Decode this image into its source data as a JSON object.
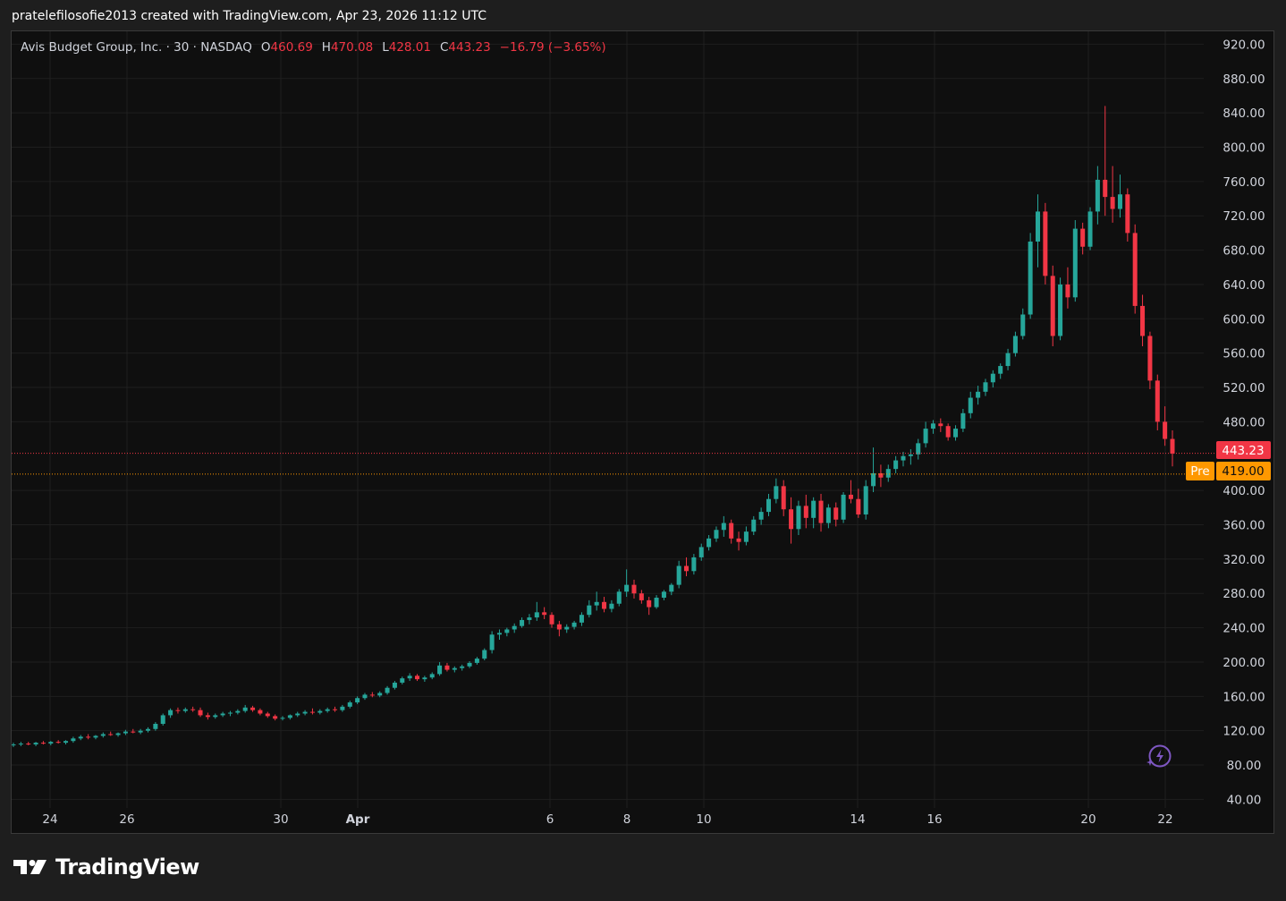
{
  "attribution": "pratelefilosofie2013 created with TradingView.com, Apr 23, 2026 11:12 UTC",
  "legend": {
    "symbol": "Avis Budget Group, Inc. · 30 · NASDAQ",
    "open_label": "O",
    "open": "460.69",
    "high_label": "H",
    "high": "470.08",
    "low_label": "L",
    "low": "428.01",
    "close_label": "C",
    "close": "443.23",
    "change": "−16.79 (−3.65%)"
  },
  "price_labels": {
    "last": "443.23",
    "premarket_tag": "Pre",
    "premarket": "419.00"
  },
  "logo_text": "TradingView",
  "colors": {
    "up": "#26a69a",
    "down": "#f23645",
    "premarket": "#ff9800",
    "background": "#0f0f0f",
    "grid": "#1f1f1f",
    "text": "#d1d4dc"
  },
  "icons": {
    "bolt": "lightning-bolt-icon",
    "logo": "tradingview-logo-icon"
  },
  "chart_data": {
    "type": "candlestick",
    "interval": "30",
    "y_axis": {
      "position": "right",
      "range": [
        30,
        935
      ],
      "ticks": [
        "920.00",
        "880.00",
        "840.00",
        "800.00",
        "760.00",
        "720.00",
        "680.00",
        "640.00",
        "600.00",
        "560.00",
        "520.00",
        "480.00",
        "400.00",
        "360.00",
        "320.00",
        "280.00",
        "240.00",
        "200.00",
        "160.00",
        "120.00",
        "80.00",
        "40.00"
      ]
    },
    "x_axis": {
      "range": [
        "Mar 23",
        "Apr 23"
      ],
      "ticks": [
        {
          "label": "24",
          "date": "Mar 24",
          "bold": false
        },
        {
          "label": "26",
          "date": "Mar 26",
          "bold": false
        },
        {
          "label": "30",
          "date": "Mar 30",
          "bold": false
        },
        {
          "label": "Apr",
          "date": "Apr 1",
          "bold": true
        },
        {
          "label": "6",
          "date": "Apr 6",
          "bold": false
        },
        {
          "label": "8",
          "date": "Apr 8",
          "bold": false
        },
        {
          "label": "10",
          "date": "Apr 10",
          "bold": false
        },
        {
          "label": "14",
          "date": "Apr 14",
          "bold": false
        },
        {
          "label": "16",
          "date": "Apr 16",
          "bold": false
        },
        {
          "label": "20",
          "date": "Apr 20",
          "bold": false
        },
        {
          "label": "22",
          "date": "Apr 22",
          "bold": false
        }
      ]
    },
    "grid": true,
    "price_lines": [
      {
        "name": "last",
        "value": 443.23,
        "color": "#f23645"
      },
      {
        "name": "premarket",
        "value": 419.0,
        "color": "#ff9800"
      }
    ],
    "candles": [
      {
        "o": 103,
        "h": 106,
        "l": 101,
        "c": 104
      },
      {
        "o": 104,
        "h": 107,
        "l": 102,
        "c": 105
      },
      {
        "o": 105,
        "h": 107,
        "l": 103,
        "c": 104
      },
      {
        "o": 104,
        "h": 107,
        "l": 102,
        "c": 106
      },
      {
        "o": 106,
        "h": 108,
        "l": 104,
        "c": 105
      },
      {
        "o": 105,
        "h": 108,
        "l": 103,
        "c": 107
      },
      {
        "o": 107,
        "h": 109,
        "l": 105,
        "c": 106
      },
      {
        "o": 106,
        "h": 109,
        "l": 104,
        "c": 108
      },
      {
        "o": 108,
        "h": 113,
        "l": 106,
        "c": 111
      },
      {
        "o": 111,
        "h": 115,
        "l": 109,
        "c": 113
      },
      {
        "o": 113,
        "h": 116,
        "l": 110,
        "c": 112
      },
      {
        "o": 112,
        "h": 115,
        "l": 110,
        "c": 114
      },
      {
        "o": 114,
        "h": 118,
        "l": 112,
        "c": 116
      },
      {
        "o": 116,
        "h": 119,
        "l": 114,
        "c": 115
      },
      {
        "o": 115,
        "h": 118,
        "l": 113,
        "c": 117
      },
      {
        "o": 117,
        "h": 121,
        "l": 115,
        "c": 119
      },
      {
        "o": 119,
        "h": 122,
        "l": 117,
        "c": 118
      },
      {
        "o": 118,
        "h": 122,
        "l": 116,
        "c": 120
      },
      {
        "o": 120,
        "h": 124,
        "l": 118,
        "c": 122
      },
      {
        "o": 122,
        "h": 130,
        "l": 120,
        "c": 128
      },
      {
        "o": 128,
        "h": 140,
        "l": 126,
        "c": 138
      },
      {
        "o": 138,
        "h": 146,
        "l": 135,
        "c": 144
      },
      {
        "o": 144,
        "h": 147,
        "l": 140,
        "c": 143
      },
      {
        "o": 143,
        "h": 147,
        "l": 141,
        "c": 145
      },
      {
        "o": 145,
        "h": 148,
        "l": 142,
        "c": 144
      },
      {
        "o": 144,
        "h": 147,
        "l": 136,
        "c": 138
      },
      {
        "o": 138,
        "h": 141,
        "l": 133,
        "c": 136
      },
      {
        "o": 136,
        "h": 140,
        "l": 134,
        "c": 138
      },
      {
        "o": 138,
        "h": 142,
        "l": 136,
        "c": 140
      },
      {
        "o": 140,
        "h": 143,
        "l": 137,
        "c": 141
      },
      {
        "o": 141,
        "h": 145,
        "l": 139,
        "c": 143
      },
      {
        "o": 143,
        "h": 150,
        "l": 141,
        "c": 147
      },
      {
        "o": 147,
        "h": 149,
        "l": 142,
        "c": 144
      },
      {
        "o": 144,
        "h": 146,
        "l": 138,
        "c": 140
      },
      {
        "o": 140,
        "h": 142,
        "l": 135,
        "c": 137
      },
      {
        "o": 137,
        "h": 139,
        "l": 132,
        "c": 134
      },
      {
        "o": 134,
        "h": 137,
        "l": 132,
        "c": 135
      },
      {
        "o": 135,
        "h": 139,
        "l": 133,
        "c": 138
      },
      {
        "o": 138,
        "h": 142,
        "l": 136,
        "c": 140
      },
      {
        "o": 140,
        "h": 144,
        "l": 138,
        "c": 142
      },
      {
        "o": 142,
        "h": 146,
        "l": 139,
        "c": 141
      },
      {
        "o": 141,
        "h": 145,
        "l": 139,
        "c": 143
      },
      {
        "o": 143,
        "h": 147,
        "l": 141,
        "c": 145
      },
      {
        "o": 145,
        "h": 148,
        "l": 142,
        "c": 144
      },
      {
        "o": 144,
        "h": 150,
        "l": 142,
        "c": 148
      },
      {
        "o": 148,
        "h": 155,
        "l": 146,
        "c": 153
      },
      {
        "o": 153,
        "h": 160,
        "l": 151,
        "c": 158
      },
      {
        "o": 158,
        "h": 164,
        "l": 156,
        "c": 162
      },
      {
        "o": 162,
        "h": 165,
        "l": 159,
        "c": 161
      },
      {
        "o": 161,
        "h": 166,
        "l": 159,
        "c": 164
      },
      {
        "o": 164,
        "h": 172,
        "l": 162,
        "c": 170
      },
      {
        "o": 170,
        "h": 178,
        "l": 168,
        "c": 176
      },
      {
        "o": 176,
        "h": 183,
        "l": 174,
        "c": 181
      },
      {
        "o": 181,
        "h": 187,
        "l": 178,
        "c": 184
      },
      {
        "o": 184,
        "h": 186,
        "l": 178,
        "c": 180
      },
      {
        "o": 180,
        "h": 184,
        "l": 177,
        "c": 182
      },
      {
        "o": 182,
        "h": 188,
        "l": 180,
        "c": 186
      },
      {
        "o": 186,
        "h": 200,
        "l": 184,
        "c": 196
      },
      {
        "o": 196,
        "h": 199,
        "l": 189,
        "c": 191
      },
      {
        "o": 191,
        "h": 195,
        "l": 188,
        "c": 193
      },
      {
        "o": 193,
        "h": 197,
        "l": 190,
        "c": 195
      },
      {
        "o": 195,
        "h": 201,
        "l": 193,
        "c": 199
      },
      {
        "o": 199,
        "h": 206,
        "l": 197,
        "c": 204
      },
      {
        "o": 204,
        "h": 216,
        "l": 202,
        "c": 214
      },
      {
        "o": 214,
        "h": 236,
        "l": 210,
        "c": 232
      },
      {
        "o": 232,
        "h": 238,
        "l": 226,
        "c": 234
      },
      {
        "o": 234,
        "h": 240,
        "l": 230,
        "c": 238
      },
      {
        "o": 238,
        "h": 245,
        "l": 234,
        "c": 242
      },
      {
        "o": 242,
        "h": 252,
        "l": 240,
        "c": 249
      },
      {
        "o": 249,
        "h": 256,
        "l": 244,
        "c": 252
      },
      {
        "o": 252,
        "h": 270,
        "l": 248,
        "c": 258
      },
      {
        "o": 258,
        "h": 264,
        "l": 250,
        "c": 255
      },
      {
        "o": 255,
        "h": 258,
        "l": 240,
        "c": 244
      },
      {
        "o": 244,
        "h": 248,
        "l": 230,
        "c": 238
      },
      {
        "o": 238,
        "h": 244,
        "l": 234,
        "c": 241
      },
      {
        "o": 241,
        "h": 248,
        "l": 238,
        "c": 246
      },
      {
        "o": 246,
        "h": 258,
        "l": 242,
        "c": 255
      },
      {
        "o": 255,
        "h": 272,
        "l": 252,
        "c": 266
      },
      {
        "o": 266,
        "h": 282,
        "l": 260,
        "c": 270
      },
      {
        "o": 270,
        "h": 276,
        "l": 258,
        "c": 262
      },
      {
        "o": 262,
        "h": 272,
        "l": 258,
        "c": 268
      },
      {
        "o": 268,
        "h": 285,
        "l": 265,
        "c": 282
      },
      {
        "o": 282,
        "h": 308,
        "l": 276,
        "c": 290
      },
      {
        "o": 290,
        "h": 296,
        "l": 274,
        "c": 280
      },
      {
        "o": 280,
        "h": 284,
        "l": 268,
        "c": 272
      },
      {
        "o": 272,
        "h": 276,
        "l": 255,
        "c": 264
      },
      {
        "o": 264,
        "h": 278,
        "l": 262,
        "c": 275
      },
      {
        "o": 275,
        "h": 284,
        "l": 272,
        "c": 282
      },
      {
        "o": 282,
        "h": 292,
        "l": 278,
        "c": 290
      },
      {
        "o": 290,
        "h": 318,
        "l": 286,
        "c": 312
      },
      {
        "o": 312,
        "h": 322,
        "l": 300,
        "c": 306
      },
      {
        "o": 306,
        "h": 326,
        "l": 302,
        "c": 322
      },
      {
        "o": 322,
        "h": 338,
        "l": 318,
        "c": 334
      },
      {
        "o": 334,
        "h": 348,
        "l": 330,
        "c": 344
      },
      {
        "o": 344,
        "h": 358,
        "l": 340,
        "c": 354
      },
      {
        "o": 354,
        "h": 370,
        "l": 346,
        "c": 362
      },
      {
        "o": 362,
        "h": 366,
        "l": 338,
        "c": 344
      },
      {
        "o": 344,
        "h": 352,
        "l": 330,
        "c": 340
      },
      {
        "o": 340,
        "h": 358,
        "l": 336,
        "c": 352
      },
      {
        "o": 352,
        "h": 370,
        "l": 348,
        "c": 366
      },
      {
        "o": 366,
        "h": 380,
        "l": 360,
        "c": 375
      },
      {
        "o": 375,
        "h": 396,
        "l": 370,
        "c": 390
      },
      {
        "o": 390,
        "h": 414,
        "l": 385,
        "c": 405
      },
      {
        "o": 405,
        "h": 412,
        "l": 370,
        "c": 378
      },
      {
        "o": 378,
        "h": 392,
        "l": 338,
        "c": 355
      },
      {
        "o": 355,
        "h": 388,
        "l": 348,
        "c": 382
      },
      {
        "o": 382,
        "h": 395,
        "l": 356,
        "c": 368
      },
      {
        "o": 368,
        "h": 392,
        "l": 356,
        "c": 388
      },
      {
        "o": 388,
        "h": 396,
        "l": 352,
        "c": 362
      },
      {
        "o": 362,
        "h": 384,
        "l": 356,
        "c": 380
      },
      {
        "o": 380,
        "h": 386,
        "l": 358,
        "c": 366
      },
      {
        "o": 366,
        "h": 398,
        "l": 362,
        "c": 395
      },
      {
        "o": 395,
        "h": 412,
        "l": 385,
        "c": 390
      },
      {
        "o": 390,
        "h": 402,
        "l": 368,
        "c": 372
      },
      {
        "o": 372,
        "h": 412,
        "l": 366,
        "c": 405
      },
      {
        "o": 405,
        "h": 450,
        "l": 398,
        "c": 420
      },
      {
        "o": 420,
        "h": 430,
        "l": 404,
        "c": 415
      },
      {
        "o": 415,
        "h": 430,
        "l": 410,
        "c": 425
      },
      {
        "o": 425,
        "h": 440,
        "l": 420,
        "c": 435
      },
      {
        "o": 435,
        "h": 445,
        "l": 428,
        "c": 440
      },
      {
        "o": 440,
        "h": 448,
        "l": 430,
        "c": 442
      },
      {
        "o": 442,
        "h": 460,
        "l": 436,
        "c": 455
      },
      {
        "o": 455,
        "h": 480,
        "l": 450,
        "c": 472
      },
      {
        "o": 472,
        "h": 482,
        "l": 466,
        "c": 478
      },
      {
        "o": 478,
        "h": 484,
        "l": 468,
        "c": 475
      },
      {
        "o": 475,
        "h": 478,
        "l": 458,
        "c": 462
      },
      {
        "o": 462,
        "h": 476,
        "l": 458,
        "c": 472
      },
      {
        "o": 472,
        "h": 495,
        "l": 468,
        "c": 490
      },
      {
        "o": 490,
        "h": 515,
        "l": 484,
        "c": 508
      },
      {
        "o": 508,
        "h": 522,
        "l": 500,
        "c": 515
      },
      {
        "o": 515,
        "h": 530,
        "l": 510,
        "c": 526
      },
      {
        "o": 526,
        "h": 540,
        "l": 520,
        "c": 536
      },
      {
        "o": 536,
        "h": 548,
        "l": 530,
        "c": 545
      },
      {
        "o": 545,
        "h": 565,
        "l": 540,
        "c": 560
      },
      {
        "o": 560,
        "h": 585,
        "l": 556,
        "c": 580
      },
      {
        "o": 580,
        "h": 612,
        "l": 576,
        "c": 605
      },
      {
        "o": 605,
        "h": 700,
        "l": 600,
        "c": 690
      },
      {
        "o": 690,
        "h": 745,
        "l": 660,
        "c": 725
      },
      {
        "o": 725,
        "h": 735,
        "l": 640,
        "c": 650
      },
      {
        "o": 650,
        "h": 662,
        "l": 568,
        "c": 580
      },
      {
        "o": 580,
        "h": 648,
        "l": 575,
        "c": 640
      },
      {
        "o": 640,
        "h": 660,
        "l": 612,
        "c": 625
      },
      {
        "o": 625,
        "h": 715,
        "l": 620,
        "c": 705
      },
      {
        "o": 705,
        "h": 712,
        "l": 675,
        "c": 684
      },
      {
        "o": 684,
        "h": 730,
        "l": 680,
        "c": 725
      },
      {
        "o": 725,
        "h": 778,
        "l": 710,
        "c": 762
      },
      {
        "o": 762,
        "h": 848,
        "l": 720,
        "c": 742
      },
      {
        "o": 742,
        "h": 778,
        "l": 712,
        "c": 728
      },
      {
        "o": 728,
        "h": 768,
        "l": 718,
        "c": 745
      },
      {
        "o": 745,
        "h": 752,
        "l": 690,
        "c": 700
      },
      {
        "o": 700,
        "h": 710,
        "l": 606,
        "c": 615
      },
      {
        "o": 615,
        "h": 628,
        "l": 568,
        "c": 580
      },
      {
        "o": 580,
        "h": 585,
        "l": 518,
        "c": 528
      },
      {
        "o": 528,
        "h": 535,
        "l": 470,
        "c": 480
      },
      {
        "o": 480,
        "h": 498,
        "l": 452,
        "c": 460
      },
      {
        "o": 460,
        "h": 470,
        "l": 428,
        "c": 443
      }
    ]
  }
}
